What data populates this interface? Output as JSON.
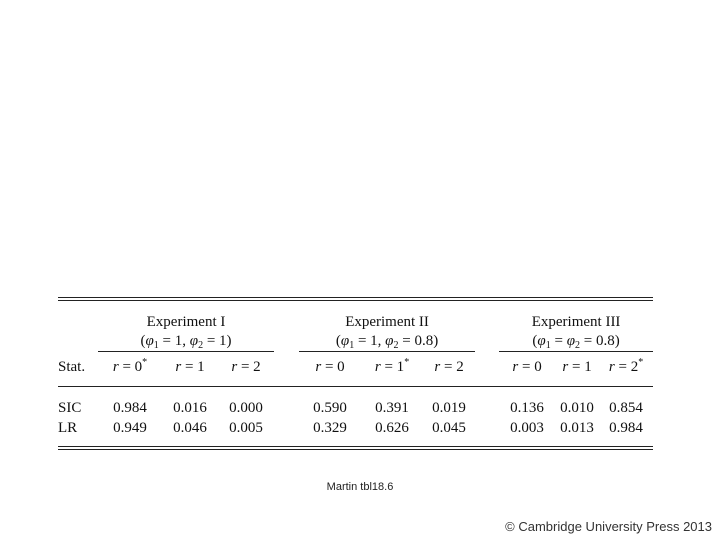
{
  "table": {
    "stat_header": "Stat.",
    "groups": [
      {
        "title": "Experiment I",
        "params": "(φ1 = 1, φ2 = 1)",
        "params_parts": [
          "(",
          "φ",
          "1",
          " = 1, ",
          "φ",
          "2",
          " = 1)"
        ]
      },
      {
        "title": "Experiment II",
        "params": "(φ1 = 1, φ2 = 0.8)",
        "params_parts": [
          "(",
          "φ",
          "1",
          " = 1, ",
          "φ",
          "2",
          " = 0.8)"
        ]
      },
      {
        "title": "Experiment III",
        "params": "(φ1 = φ2 = 0.8)",
        "params_parts": [
          "(",
          "φ",
          "1",
          " = ",
          "φ",
          "2",
          " = 0.8)"
        ]
      }
    ],
    "conditions": [
      {
        "var": "r",
        "eq": " = 0",
        "mark": "*"
      },
      {
        "var": "r",
        "eq": " = 1",
        "mark": ""
      },
      {
        "var": "r",
        "eq": " = 2",
        "mark": ""
      },
      {
        "var": "r",
        "eq": " = 0",
        "mark": ""
      },
      {
        "var": "r",
        "eq": " = 1",
        "mark": "*"
      },
      {
        "var": "r",
        "eq": " = 2",
        "mark": ""
      },
      {
        "var": "r",
        "eq": " = 0",
        "mark": ""
      },
      {
        "var": "r",
        "eq": " = 1",
        "mark": ""
      },
      {
        "var": "r",
        "eq": " = 2",
        "mark": "*"
      }
    ],
    "rows": [
      {
        "stat": "SIC",
        "values": [
          "0.984",
          "0.016",
          "0.000",
          "0.590",
          "0.391",
          "0.019",
          "0.136",
          "0.010",
          "0.854"
        ]
      },
      {
        "stat": "LR",
        "values": [
          "0.949",
          "0.046",
          "0.005",
          "0.329",
          "0.626",
          "0.045",
          "0.003",
          "0.013",
          "0.984"
        ]
      }
    ]
  },
  "caption": "Martin tbl18.6",
  "copyright": "© Cambridge University Press 2013"
}
